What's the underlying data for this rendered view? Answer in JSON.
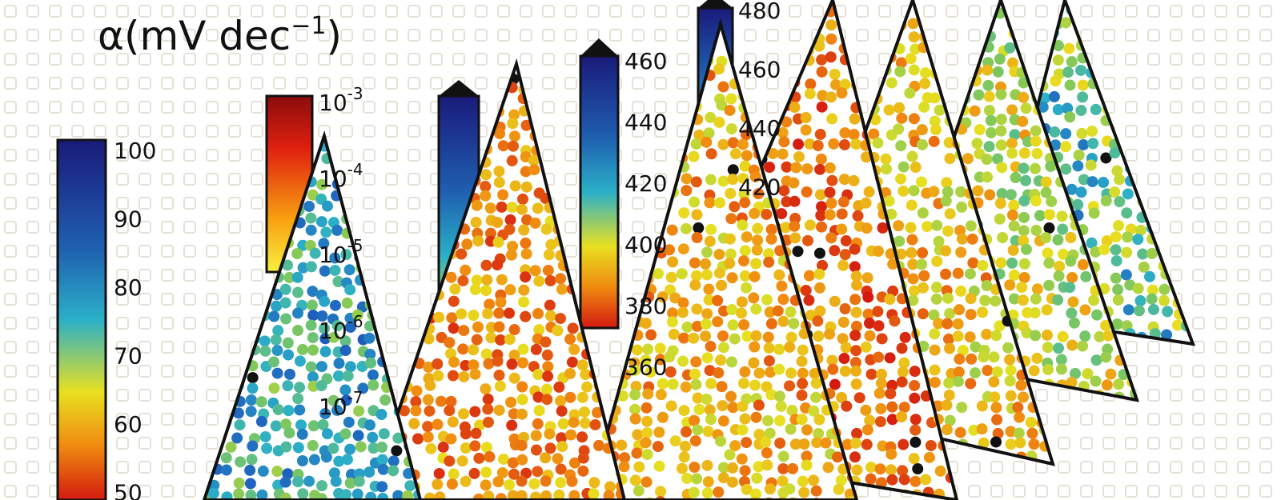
{
  "title": {
    "symbol": "α",
    "main": "(mV dec",
    "sup": "−1",
    "end": ")"
  },
  "colorbars": [
    {
      "labels": [
        "100",
        "90",
        "80",
        "70",
        "60",
        "50"
      ]
    },
    {
      "labels": [
        {
          "base": "10",
          "exp": "-3"
        },
        {
          "base": "10",
          "exp": "-4"
        },
        {
          "base": "10",
          "exp": "-5"
        },
        {
          "base": "10",
          "exp": "-6"
        },
        {
          "base": "10",
          "exp": "-7"
        }
      ]
    },
    {
      "labels": [
        "460",
        "440",
        "420",
        "400",
        "380",
        "360"
      ]
    },
    {
      "labels": [
        "480",
        "460",
        "440",
        "420"
      ]
    }
  ]
}
